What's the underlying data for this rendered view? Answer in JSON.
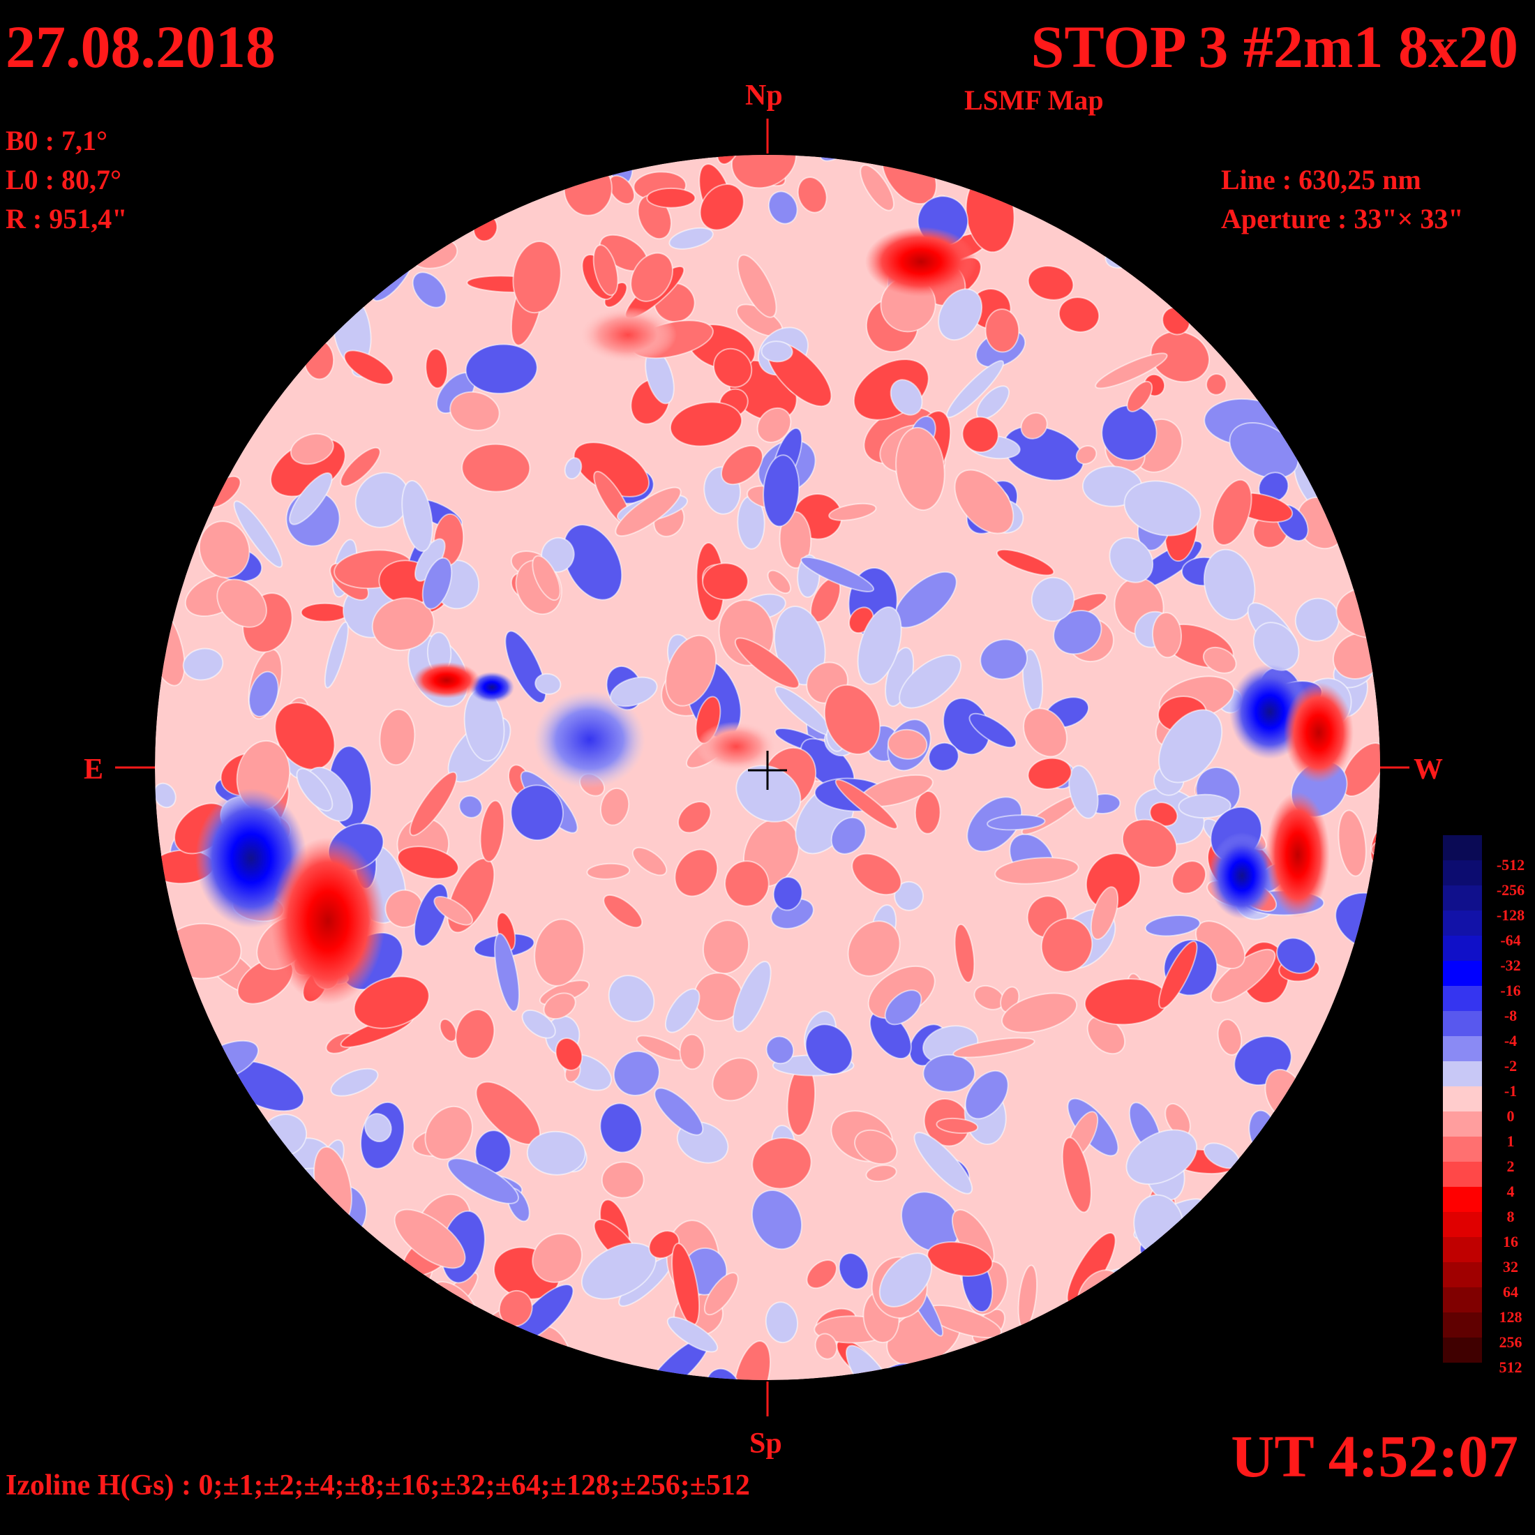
{
  "header": {
    "date": "27.08.2018",
    "station": "STOP 3 #2m1 8x20",
    "map_type": "LSMF  Map"
  },
  "parameters": [
    {
      "key": "b0",
      "text": "B0 : 7,1°"
    },
    {
      "key": "l0",
      "text": "L0 : 80,7°"
    },
    {
      "key": "r",
      "text": "R  : 951,4\""
    }
  ],
  "instrument": {
    "line": "Line :  630,25 nm",
    "aperture": "Aperture : 33\"× 33\""
  },
  "compass": {
    "north": "Np",
    "south": "Sp",
    "east": "E",
    "west": "W"
  },
  "time": "UT 4:52:07",
  "izoline": "Izoline H(Gs) : 0;±1;±2;±4;±8;±16;±32;±64;±128;±256;±512",
  "legend": {
    "levels": [
      {
        "label": "-512",
        "color": "#0a0a55"
      },
      {
        "label": "-256",
        "color": "#0c0c70"
      },
      {
        "label": "-128",
        "color": "#10108c"
      },
      {
        "label": "-64",
        "color": "#1212a8"
      },
      {
        "label": "-32",
        "color": "#1010c8"
      },
      {
        "label": "-16",
        "color": "#0000ff"
      },
      {
        "label": "-8",
        "color": "#3535f0"
      },
      {
        "label": "-4",
        "color": "#5858ee"
      },
      {
        "label": "-2",
        "color": "#8a8af4"
      },
      {
        "label": "-1",
        "color": "#c8c8f6"
      },
      {
        "label": "0",
        "color": "#ffcccc"
      },
      {
        "label": "1",
        "color": "#ff9e9e"
      },
      {
        "label": "2",
        "color": "#ff7070"
      },
      {
        "label": "4",
        "color": "#ff4848"
      },
      {
        "label": "8",
        "color": "#ff0000"
      },
      {
        "label": "16",
        "color": "#e00000"
      },
      {
        "label": "32",
        "color": "#c00000"
      },
      {
        "label": "64",
        "color": "#a00000"
      },
      {
        "label": "128",
        "color": "#800000"
      },
      {
        "label": "256",
        "color": "#600000"
      },
      {
        "label": "512",
        "color": "#400000"
      }
    ]
  },
  "colors": {
    "text": "#ff1a1a",
    "background": "#000000",
    "contour": "#ffffff"
  }
}
